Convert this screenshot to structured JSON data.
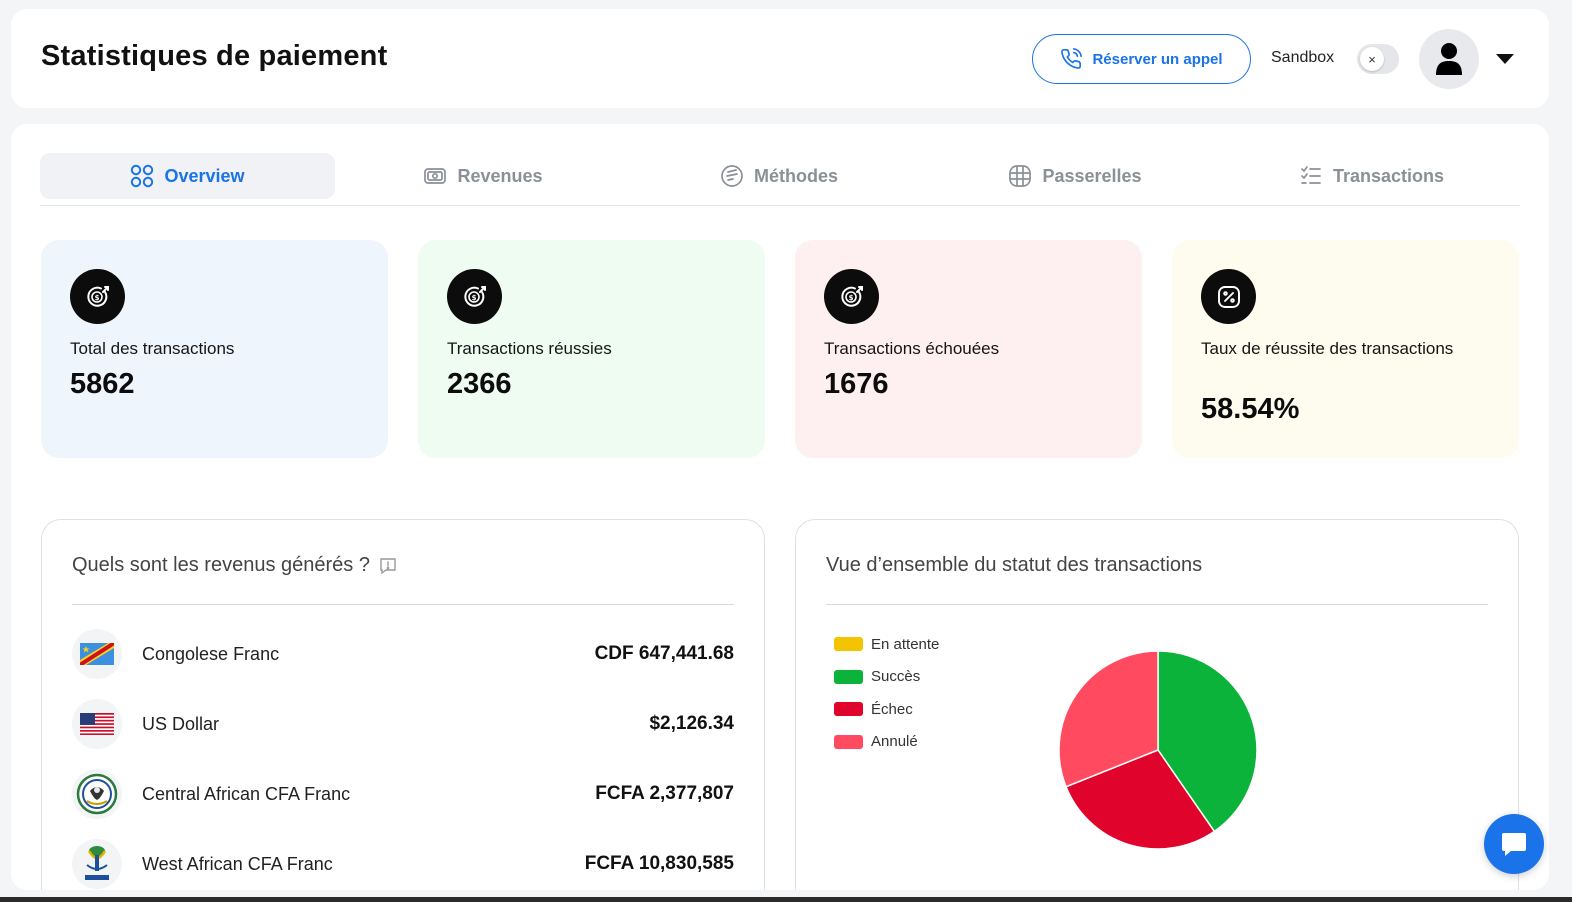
{
  "header": {
    "title": "Statistiques de paiement",
    "book_call_label": "Réserver un appel",
    "sandbox_label": "Sandbox",
    "toggle_symbol": "×"
  },
  "tabs": [
    {
      "label": "Overview",
      "icon": "grid-icon",
      "active": true
    },
    {
      "label": "Revenues",
      "icon": "money-icon",
      "active": false
    },
    {
      "label": "Méthodes",
      "icon": "card-icon",
      "active": false
    },
    {
      "label": "Passerelles",
      "icon": "globe-icon",
      "active": false
    },
    {
      "label": "Transactions",
      "icon": "checklist-icon",
      "active": false
    }
  ],
  "stats": [
    {
      "label": "Total des transactions",
      "value": "5862",
      "icon": "dollar-target-icon",
      "bg": "#eff5fd"
    },
    {
      "label": "Transactions réussies",
      "value": "2366",
      "icon": "dollar-target-icon",
      "bg": "#eefcf1"
    },
    {
      "label": "Transactions échouées",
      "value": "1676",
      "icon": "dollar-target-icon",
      "bg": "#feeff1"
    },
    {
      "label": "Taux de réussite des transactions",
      "value": "58.54%",
      "icon": "percent-icon",
      "bg": "#fefcee"
    }
  ],
  "revenue_panel": {
    "title": "Quels sont les revenus générés ?",
    "items": [
      {
        "name": "Congolese Franc",
        "amount": "CDF 647,441.68",
        "flag": "drc-flag-icon"
      },
      {
        "name": "US Dollar",
        "amount": "$2,126.34",
        "flag": "us-flag-icon"
      },
      {
        "name": "Central African CFA Franc",
        "amount": "FCFA 2,377,807",
        "flag": "cemac-emblem-icon"
      },
      {
        "name": "West African CFA Franc",
        "amount": "FCFA 10,830,585",
        "flag": "uemoa-emblem-icon"
      }
    ]
  },
  "status_panel": {
    "title": "Vue d’ensemble du statut des transactions"
  },
  "chart_data": {
    "type": "pie",
    "categories": [
      "En attente",
      "Succès",
      "Échec",
      "Annulé"
    ],
    "values": [
      0,
      2366,
      1676,
      1820
    ],
    "colors": [
      "#f5c400",
      "#0bb33b",
      "#e0032b",
      "#ff4a5f"
    ],
    "legend": "top-left"
  },
  "colors": {
    "accent": "#1a73e8",
    "chat_button": "#1a73e8"
  }
}
